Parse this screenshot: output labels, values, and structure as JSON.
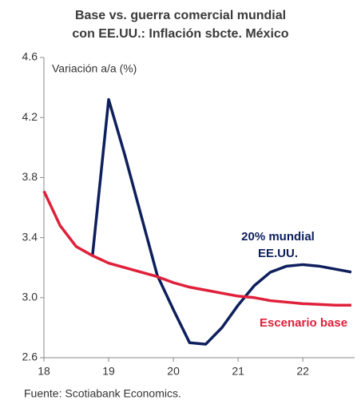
{
  "chart_data": {
    "type": "line",
    "title": [
      "Base vs. guerra comercial mundial",
      "con EE.UU.: Inflación sbcte. México"
    ],
    "y_label": "Variación a/a (%)",
    "source": "Fuente: Scotiabank Economics.",
    "x": [
      18,
      18.25,
      18.5,
      18.75,
      19,
      19.25,
      19.5,
      19.75,
      20,
      20.25,
      20.5,
      20.75,
      21,
      21.25,
      21.5,
      21.75,
      22,
      22.25,
      22.5,
      22.75
    ],
    "series": [
      {
        "name": [
          "20% mundial",
          "EE.UU."
        ],
        "color": "#0d1f5c",
        "values": [
          null,
          null,
          null,
          3.28,
          4.32,
          3.95,
          3.55,
          3.15,
          2.92,
          2.7,
          2.69,
          2.8,
          2.95,
          3.08,
          3.17,
          3.21,
          3.22,
          3.21,
          3.19,
          3.17
        ]
      },
      {
        "name": "Escenario base",
        "color": "#e0203a",
        "values": [
          3.71,
          3.48,
          3.34,
          3.28,
          3.23,
          3.2,
          3.17,
          3.14,
          3.1,
          3.07,
          3.05,
          3.03,
          3.01,
          3.0,
          2.98,
          2.97,
          2.96,
          2.955,
          2.95,
          2.95
        ]
      }
    ],
    "xlim": [
      18,
      22.8
    ],
    "xticks": [
      18,
      19,
      20,
      21,
      22
    ],
    "ylim": [
      2.6,
      4.6
    ],
    "yticks": [
      {
        "value": 2.6,
        "label": "2.6"
      },
      {
        "value": 3,
        "label": "3.0"
      },
      3.4,
      3.8,
      4.2,
      4.6
    ],
    "grid": false
  }
}
